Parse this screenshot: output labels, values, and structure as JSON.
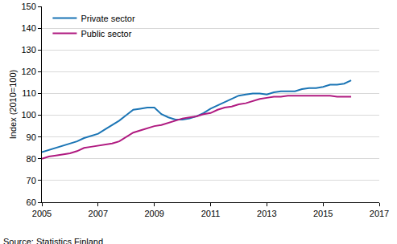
{
  "chart_data": {
    "type": "line",
    "y_label": "Index (2010=100)",
    "source": "Source: Statistics Finland",
    "x": [
      2005.0,
      2005.25,
      2005.5,
      2005.75,
      2006.0,
      2006.25,
      2006.5,
      2006.75,
      2007.0,
      2007.25,
      2007.5,
      2007.75,
      2008.0,
      2008.25,
      2008.5,
      2008.75,
      2009.0,
      2009.25,
      2009.5,
      2009.75,
      2010.0,
      2010.25,
      2010.5,
      2010.75,
      2011.0,
      2011.25,
      2011.5,
      2011.75,
      2012.0,
      2012.25,
      2012.5,
      2012.75,
      2013.0,
      2013.25,
      2013.5,
      2013.75,
      2014.0,
      2014.25,
      2014.5,
      2014.75,
      2015.0,
      2015.25,
      2015.5,
      2015.75,
      2016.0
    ],
    "series": [
      {
        "name": "Private sector",
        "color": "#1b75b5",
        "values": [
          83,
          84,
          85,
          86,
          87,
          88,
          89.5,
          90.5,
          91.5,
          93.5,
          95.5,
          97.5,
          100,
          102.5,
          103,
          103.5,
          103.5,
          100.5,
          99,
          98,
          98,
          98.5,
          99.5,
          101,
          103,
          104.5,
          106,
          107.5,
          109,
          109.5,
          110,
          110,
          109.5,
          110.5,
          111,
          111,
          111,
          112,
          112.5,
          112.5,
          113,
          114,
          114,
          114.5,
          116
        ]
      },
      {
        "name": "Public sector",
        "color": "#b01a80",
        "values": [
          80,
          81,
          81.5,
          82,
          82.5,
          83.5,
          85,
          85.5,
          86,
          86.5,
          87,
          88,
          90,
          92,
          93,
          94,
          95,
          95.5,
          96.5,
          97.5,
          98.5,
          99,
          99.5,
          100.5,
          101,
          102.5,
          103.5,
          104,
          105,
          105.5,
          106.5,
          107.5,
          108,
          108.5,
          108.5,
          109,
          109,
          109,
          109,
          109,
          109,
          109,
          108.5,
          108.5,
          108.5
        ]
      }
    ],
    "xlim": [
      2005,
      2017
    ],
    "xticks": [
      2005,
      2007,
      2009,
      2011,
      2013,
      2015,
      2017
    ],
    "ylim": [
      60,
      150
    ],
    "yticks": [
      60,
      70,
      80,
      90,
      100,
      110,
      120,
      130,
      140,
      150
    ],
    "grid": true,
    "legend": "top-left"
  }
}
